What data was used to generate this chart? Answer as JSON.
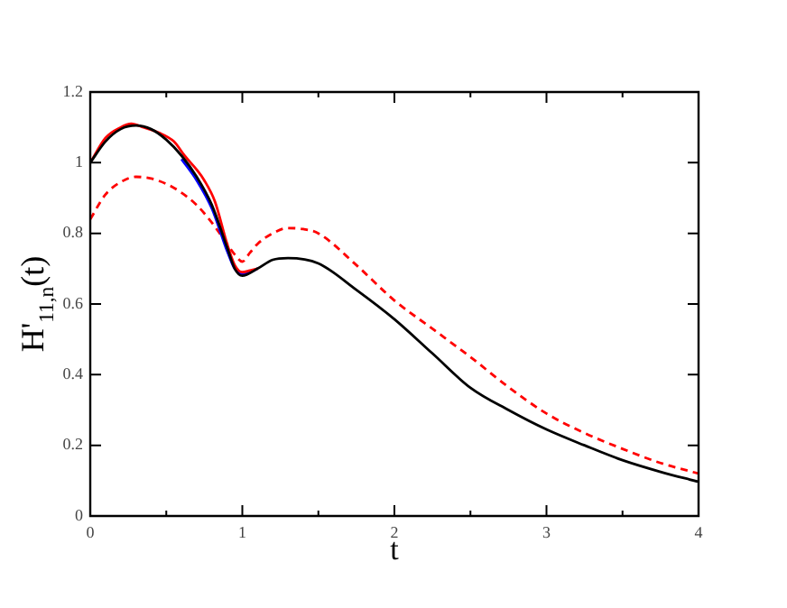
{
  "chart_data": {
    "type": "line",
    "xlabel": "t",
    "ylabel": "H'$_{11,n}$(t)",
    "xlim": [
      0,
      4
    ],
    "ylim": [
      0,
      1.2
    ],
    "xticks": [
      0,
      {
        "value": 0.5,
        "label": null
      },
      1,
      {
        "value": 1.5,
        "label": null
      },
      2,
      {
        "value": 2.5,
        "label": null
      },
      3,
      {
        "value": 3.5,
        "label": null
      },
      4
    ],
    "yticks": [
      0,
      0.2,
      0.4,
      0.6,
      0.8,
      1,
      1.2
    ],
    "grid": false,
    "legend": false,
    "marker": "none",
    "series": [
      {
        "color": "#ff0000",
        "line_style": "dashed",
        "x": [
          0,
          0.1,
          0.2,
          0.3,
          0.4,
          0.5,
          0.6,
          0.7,
          0.8,
          0.9,
          0.95,
          1.0,
          1.05,
          1.1,
          1.2,
          1.3,
          1.4,
          1.5,
          1.75,
          2.0,
          2.25,
          2.5,
          2.75,
          3.0,
          3.25,
          3.5,
          3.75,
          4.0
        ],
        "values": [
          0.84,
          0.91,
          0.945,
          0.96,
          0.955,
          0.94,
          0.915,
          0.88,
          0.83,
          0.77,
          0.74,
          0.72,
          0.745,
          0.77,
          0.8,
          0.815,
          0.812,
          0.8,
          0.71,
          0.61,
          0.53,
          0.45,
          0.365,
          0.29,
          0.235,
          0.19,
          0.15,
          0.12
        ]
      },
      {
        "color": "#0000ff",
        "line_style": "solid",
        "x": [
          0.6,
          0.7,
          0.8,
          0.9,
          0.95,
          1.0,
          1.05,
          1.1
        ],
        "values": [
          1.01,
          0.95,
          0.87,
          0.75,
          0.7,
          0.685,
          0.69,
          0.7
        ]
      },
      {
        "color": "#ff0000",
        "line_style": "solid",
        "x": [
          0,
          0.1,
          0.2,
          0.27,
          0.35,
          0.45,
          0.55,
          0.62,
          0.7,
          0.75,
          0.82,
          0.9,
          0.95,
          1.0,
          1.05,
          1.1
        ],
        "values": [
          1.0,
          1.07,
          1.1,
          1.11,
          1.1,
          1.085,
          1.06,
          1.02,
          0.98,
          0.95,
          0.89,
          0.77,
          0.71,
          0.69,
          0.695,
          0.7
        ]
      },
      {
        "color": "#000000",
        "line_style": "solid",
        "x": [
          0,
          0.1,
          0.2,
          0.3,
          0.4,
          0.5,
          0.6,
          0.7,
          0.8,
          0.9,
          0.95,
          1.0,
          1.1,
          1.2,
          1.3,
          1.5,
          1.75,
          2.0,
          2.25,
          2.5,
          2.75,
          3.0,
          3.25,
          3.5,
          3.75,
          4.0
        ],
        "values": [
          1.0,
          1.06,
          1.095,
          1.105,
          1.095,
          1.065,
          1.02,
          0.96,
          0.88,
          0.76,
          0.7,
          0.68,
          0.7,
          0.725,
          0.73,
          0.715,
          0.64,
          0.557,
          0.46,
          0.363,
          0.3,
          0.245,
          0.2,
          0.158,
          0.125,
          0.097
        ]
      }
    ]
  }
}
